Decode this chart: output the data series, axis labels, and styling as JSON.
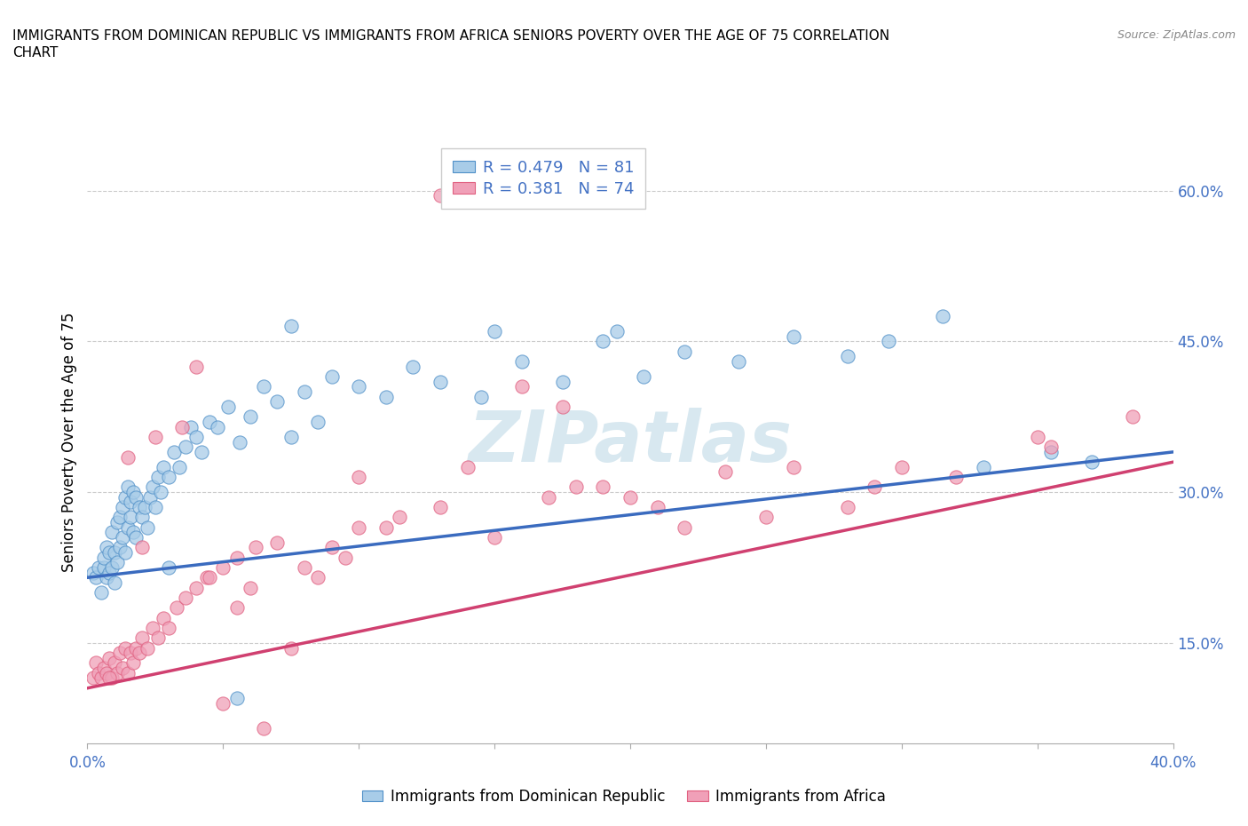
{
  "title": "IMMIGRANTS FROM DOMINICAN REPUBLIC VS IMMIGRANTS FROM AFRICA SENIORS POVERTY OVER THE AGE OF 75 CORRELATION\nCHART",
  "source": "Source: ZipAtlas.com",
  "ylabel": "Seniors Poverty Over the Age of 75",
  "xlim": [
    0.0,
    0.4
  ],
  "ylim": [
    0.05,
    0.65
  ],
  "x_ticks": [
    0.0,
    0.05,
    0.1,
    0.15,
    0.2,
    0.25,
    0.3,
    0.35,
    0.4
  ],
  "x_tick_labels": [
    "0.0%",
    "",
    "",
    "",
    "",
    "",
    "",
    "",
    "40.0%"
  ],
  "y_ticks_right": [
    0.15,
    0.3,
    0.45,
    0.6
  ],
  "y_tick_labels_right": [
    "15.0%",
    "30.0%",
    "45.0%",
    "60.0%"
  ],
  "blue_color": "#A8CCE8",
  "pink_color": "#F0A0B8",
  "blue_edge_color": "#5090C8",
  "pink_edge_color": "#E06080",
  "blue_line_color": "#3A6BBF",
  "pink_line_color": "#D04070",
  "watermark_color": "#D8E8F0",
  "watermark": "ZIPatlas",
  "legend_R1": "R = 0.479",
  "legend_N1": "N = 81",
  "legend_R2": "R = 0.381",
  "legend_N2": "N = 74",
  "blue_trend_x0": 0.0,
  "blue_trend_x1": 0.4,
  "blue_trend_y0": 0.215,
  "blue_trend_y1": 0.34,
  "pink_trend_y0": 0.105,
  "pink_trend_y1": 0.33,
  "blue_scatter_x": [
    0.002,
    0.003,
    0.004,
    0.005,
    0.006,
    0.006,
    0.007,
    0.007,
    0.008,
    0.008,
    0.009,
    0.009,
    0.01,
    0.01,
    0.011,
    0.011,
    0.012,
    0.012,
    0.013,
    0.013,
    0.014,
    0.014,
    0.015,
    0.015,
    0.016,
    0.016,
    0.017,
    0.017,
    0.018,
    0.018,
    0.019,
    0.02,
    0.021,
    0.022,
    0.023,
    0.024,
    0.025,
    0.026,
    0.027,
    0.028,
    0.03,
    0.032,
    0.034,
    0.036,
    0.038,
    0.04,
    0.042,
    0.045,
    0.048,
    0.052,
    0.056,
    0.06,
    0.065,
    0.07,
    0.075,
    0.08,
    0.085,
    0.09,
    0.1,
    0.11,
    0.12,
    0.13,
    0.145,
    0.16,
    0.175,
    0.19,
    0.205,
    0.22,
    0.24,
    0.26,
    0.28,
    0.295,
    0.315,
    0.33,
    0.355,
    0.37,
    0.15,
    0.195,
    0.055,
    0.03,
    0.075
  ],
  "blue_scatter_y": [
    0.22,
    0.215,
    0.225,
    0.2,
    0.225,
    0.235,
    0.215,
    0.245,
    0.22,
    0.24,
    0.225,
    0.26,
    0.21,
    0.24,
    0.23,
    0.27,
    0.245,
    0.275,
    0.255,
    0.285,
    0.24,
    0.295,
    0.265,
    0.305,
    0.275,
    0.29,
    0.26,
    0.3,
    0.255,
    0.295,
    0.285,
    0.275,
    0.285,
    0.265,
    0.295,
    0.305,
    0.285,
    0.315,
    0.3,
    0.325,
    0.315,
    0.34,
    0.325,
    0.345,
    0.365,
    0.355,
    0.34,
    0.37,
    0.365,
    0.385,
    0.35,
    0.375,
    0.405,
    0.39,
    0.355,
    0.4,
    0.37,
    0.415,
    0.405,
    0.395,
    0.425,
    0.41,
    0.395,
    0.43,
    0.41,
    0.45,
    0.415,
    0.44,
    0.43,
    0.455,
    0.435,
    0.45,
    0.475,
    0.325,
    0.34,
    0.33,
    0.46,
    0.46,
    0.095,
    0.225,
    0.465
  ],
  "pink_scatter_x": [
    0.002,
    0.003,
    0.004,
    0.005,
    0.006,
    0.007,
    0.008,
    0.009,
    0.01,
    0.011,
    0.012,
    0.013,
    0.014,
    0.015,
    0.016,
    0.017,
    0.018,
    0.019,
    0.02,
    0.022,
    0.024,
    0.026,
    0.028,
    0.03,
    0.033,
    0.036,
    0.04,
    0.044,
    0.05,
    0.055,
    0.062,
    0.07,
    0.08,
    0.09,
    0.1,
    0.115,
    0.13,
    0.15,
    0.17,
    0.19,
    0.21,
    0.235,
    0.26,
    0.29,
    0.32,
    0.355,
    0.385,
    0.175,
    0.085,
    0.035,
    0.05,
    0.065,
    0.025,
    0.015,
    0.02,
    0.04,
    0.055,
    0.075,
    0.1,
    0.13,
    0.16,
    0.2,
    0.25,
    0.3,
    0.35,
    0.28,
    0.22,
    0.18,
    0.14,
    0.11,
    0.095,
    0.06,
    0.045,
    0.008
  ],
  "pink_scatter_y": [
    0.115,
    0.13,
    0.12,
    0.115,
    0.125,
    0.12,
    0.135,
    0.115,
    0.13,
    0.12,
    0.14,
    0.125,
    0.145,
    0.12,
    0.14,
    0.13,
    0.145,
    0.14,
    0.155,
    0.145,
    0.165,
    0.155,
    0.175,
    0.165,
    0.185,
    0.195,
    0.205,
    0.215,
    0.225,
    0.235,
    0.245,
    0.25,
    0.225,
    0.245,
    0.265,
    0.275,
    0.285,
    0.255,
    0.295,
    0.305,
    0.285,
    0.32,
    0.325,
    0.305,
    0.315,
    0.345,
    0.375,
    0.385,
    0.215,
    0.365,
    0.09,
    0.065,
    0.355,
    0.335,
    0.245,
    0.425,
    0.185,
    0.145,
    0.315,
    0.595,
    0.405,
    0.295,
    0.275,
    0.325,
    0.355,
    0.285,
    0.265,
    0.305,
    0.325,
    0.265,
    0.235,
    0.205,
    0.215,
    0.115
  ]
}
